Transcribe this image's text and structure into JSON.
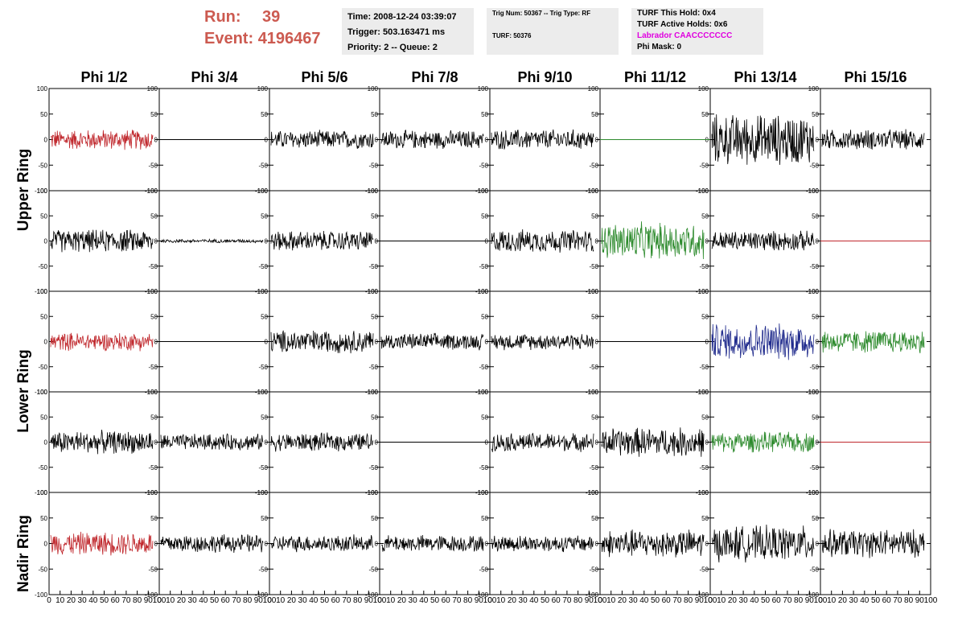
{
  "header": {
    "run_label": "Run:",
    "run_value": "39",
    "event_label": "Event:",
    "event_value": "4196467"
  },
  "info_box_1": {
    "time": "Time: 2008-12-24 03:39:07",
    "trigger": "Trigger: 503.163471 ms",
    "priority": "Priority: 2 -- Queue: 2"
  },
  "info_box_2": {
    "trig": "Trig Num: 50367 -- Trig Type: RF",
    "turf": "TURF: 50376"
  },
  "info_box_3": {
    "this_hold": "TURF This Hold: 0x4",
    "active_holds": "TURF Active Holds: 0x6",
    "labrador": "Labrador CAACCCCCCC",
    "phi_mask": "Phi Mask: 0"
  },
  "phi_titles": [
    "Phi 1/2",
    "Phi 3/4",
    "Phi 5/6",
    "Phi 7/8",
    "Phi 9/10",
    "Phi 11/12",
    "Phi 13/14",
    "Phi 15/16"
  ],
  "ring_labels": [
    "Upper Ring",
    "Lower Ring",
    "Nadir Ring"
  ],
  "colors": {
    "red": "#c0282d",
    "green": "#2e8b2e",
    "blue": "#1f2a8c",
    "black": "#000000",
    "header_red": "#cc5a50",
    "magenta": "#e000e0"
  },
  "chart_data": {
    "type": "line",
    "description_rows": [
      "Upper Ring top",
      "Upper Ring bottom",
      "Lower Ring top",
      "Lower Ring bottom",
      "Nadir Ring"
    ],
    "ylim": [
      -100,
      100
    ],
    "xlim": [
      0,
      100
    ],
    "y_ticks": [
      "100",
      "50",
      "0",
      "-50",
      "-100"
    ],
    "x_ticks": [
      "0",
      "10",
      "20",
      "30",
      "40",
      "50",
      "60",
      "70",
      "80",
      "90",
      "100"
    ],
    "panels": [
      [
        {
          "color": "red",
          "amp": 22,
          "flat": false
        },
        {
          "color": "black",
          "amp": 0,
          "flat": true
        },
        {
          "color": "black",
          "amp": 20,
          "flat": false
        },
        {
          "color": "black",
          "amp": 20,
          "flat": false
        },
        {
          "color": "black",
          "amp": 22,
          "flat": false
        },
        {
          "color": "green",
          "amp": 0,
          "flat": true
        },
        {
          "color": "black",
          "amp": 55,
          "flat": false
        },
        {
          "color": "black",
          "amp": 22,
          "flat": false
        }
      ],
      [
        {
          "color": "black",
          "amp": 25,
          "flat": false
        },
        {
          "color": "black",
          "amp": 4,
          "flat": false
        },
        {
          "color": "black",
          "amp": 22,
          "flat": false
        },
        {
          "color": "black",
          "amp": 0,
          "flat": true
        },
        {
          "color": "black",
          "amp": 25,
          "flat": false
        },
        {
          "color": "green",
          "amp": 40,
          "flat": false
        },
        {
          "color": "black",
          "amp": 22,
          "flat": false
        },
        {
          "color": "red",
          "amp": 0,
          "flat": true
        }
      ],
      [
        {
          "color": "red",
          "amp": 20,
          "flat": false
        },
        {
          "color": "black",
          "amp": 0,
          "flat": true
        },
        {
          "color": "black",
          "amp": 25,
          "flat": false
        },
        {
          "color": "black",
          "amp": 18,
          "flat": false
        },
        {
          "color": "black",
          "amp": 18,
          "flat": false
        },
        {
          "color": "black",
          "amp": 0,
          "flat": true
        },
        {
          "color": "blue",
          "amp": 40,
          "flat": false
        },
        {
          "color": "green",
          "amp": 25,
          "flat": false
        }
      ],
      [
        {
          "color": "black",
          "amp": 25,
          "flat": false
        },
        {
          "color": "black",
          "amp": 18,
          "flat": false
        },
        {
          "color": "black",
          "amp": 20,
          "flat": false
        },
        {
          "color": "black",
          "amp": 0,
          "flat": true
        },
        {
          "color": "black",
          "amp": 20,
          "flat": false
        },
        {
          "color": "black",
          "amp": 32,
          "flat": false
        },
        {
          "color": "green",
          "amp": 22,
          "flat": false
        },
        {
          "color": "red",
          "amp": 0,
          "flat": true
        }
      ],
      [
        {
          "color": "red",
          "amp": 25,
          "flat": false
        },
        {
          "color": "black",
          "amp": 20,
          "flat": false
        },
        {
          "color": "black",
          "amp": 18,
          "flat": false
        },
        {
          "color": "black",
          "amp": 18,
          "flat": false
        },
        {
          "color": "black",
          "amp": 18,
          "flat": false
        },
        {
          "color": "black",
          "amp": 30,
          "flat": false
        },
        {
          "color": "black",
          "amp": 38,
          "flat": false
        },
        {
          "color": "black",
          "amp": 30,
          "flat": false
        }
      ]
    ]
  }
}
